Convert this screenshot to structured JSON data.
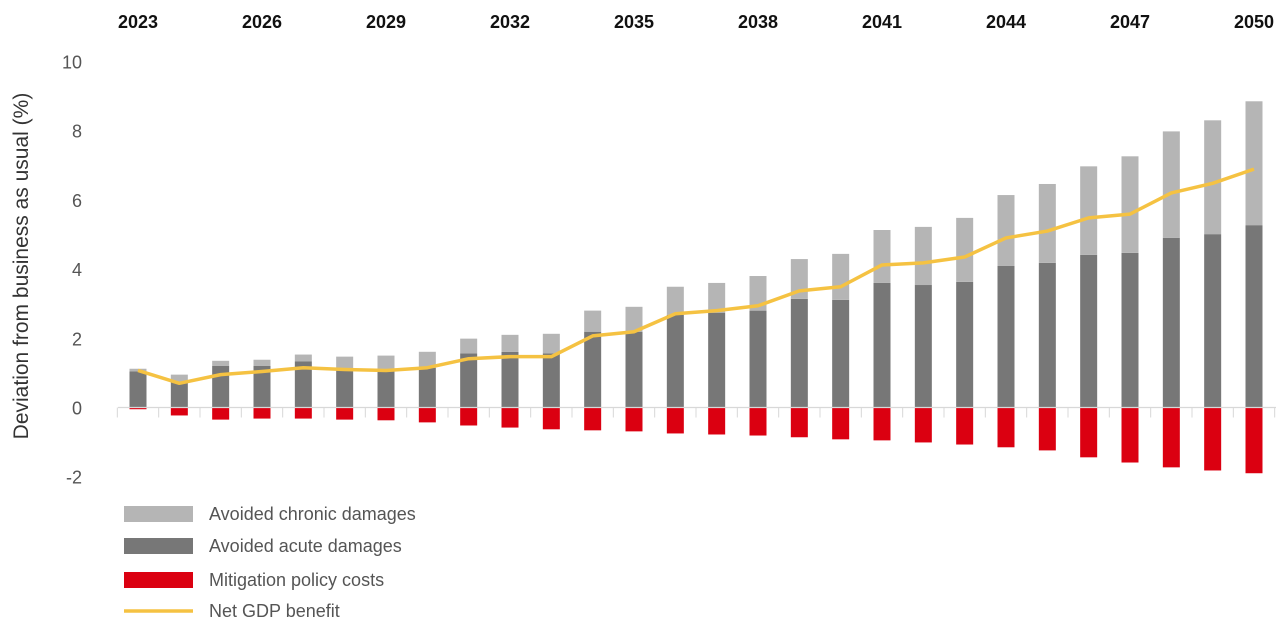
{
  "chart_data": {
    "type": "bar",
    "ylabel": "Deviation from business as usual (%)",
    "ylim": [
      -2,
      10
    ],
    "yticks": [
      10,
      8,
      6,
      4,
      2,
      0,
      -2
    ],
    "xtick_labels": [
      "2023",
      "2026",
      "2029",
      "2032",
      "2035",
      "2038",
      "2041",
      "2044",
      "2047",
      "2050"
    ],
    "xaxis_position": "top",
    "grid": false,
    "legend_position": "bottom-left",
    "categories": [
      2023,
      2024,
      2025,
      2026,
      2027,
      2028,
      2029,
      2030,
      2031,
      2032,
      2033,
      2034,
      2035,
      2036,
      2037,
      2038,
      2039,
      2040,
      2041,
      2042,
      2043,
      2044,
      2045,
      2046,
      2047,
      2048,
      2049,
      2050
    ],
    "series": [
      {
        "name": "Avoided chronic damages",
        "kind": "stacked-bar",
        "color": "#b5b5b5",
        "values": [
          0.08,
          0.2,
          0.15,
          0.18,
          0.2,
          0.35,
          0.38,
          0.46,
          0.43,
          0.49,
          0.57,
          0.61,
          0.72,
          0.81,
          0.86,
          1.0,
          1.15,
          1.33,
          1.53,
          1.68,
          1.85,
          2.05,
          2.28,
          2.56,
          2.79,
          3.08,
          3.29,
          3.58
        ]
      },
      {
        "name": "Avoided acute damages",
        "kind": "stacked-bar",
        "color": "#777777",
        "values": [
          1.04,
          0.75,
          1.2,
          1.2,
          1.33,
          1.12,
          1.12,
          1.15,
          1.56,
          1.61,
          1.56,
          2.19,
          2.19,
          2.68,
          2.74,
          2.8,
          3.14,
          3.11,
          3.6,
          3.54,
          3.63,
          4.09,
          4.18,
          4.41,
          4.47,
          4.9,
          5.01,
          5.27
        ]
      },
      {
        "name": "Mitigation policy costs",
        "kind": "bar",
        "color": "#db0011",
        "values": [
          -0.05,
          -0.23,
          -0.35,
          -0.32,
          -0.32,
          -0.35,
          -0.37,
          -0.43,
          -0.52,
          -0.58,
          -0.63,
          -0.66,
          -0.69,
          -0.75,
          -0.78,
          -0.81,
          -0.86,
          -0.92,
          -0.95,
          -1.01,
          -1.07,
          -1.15,
          -1.24,
          -1.44,
          -1.59,
          -1.73,
          -1.82,
          -1.9
        ]
      },
      {
        "name": "Net GDP benefit",
        "kind": "line",
        "color": "#f5c242",
        "values": [
          1.07,
          0.7,
          0.95,
          1.04,
          1.15,
          1.1,
          1.07,
          1.15,
          1.41,
          1.47,
          1.47,
          2.07,
          2.19,
          2.71,
          2.8,
          2.94,
          3.37,
          3.49,
          4.12,
          4.18,
          4.35,
          4.9,
          5.1,
          5.48,
          5.59,
          6.2,
          6.48,
          6.89
        ]
      }
    ]
  }
}
